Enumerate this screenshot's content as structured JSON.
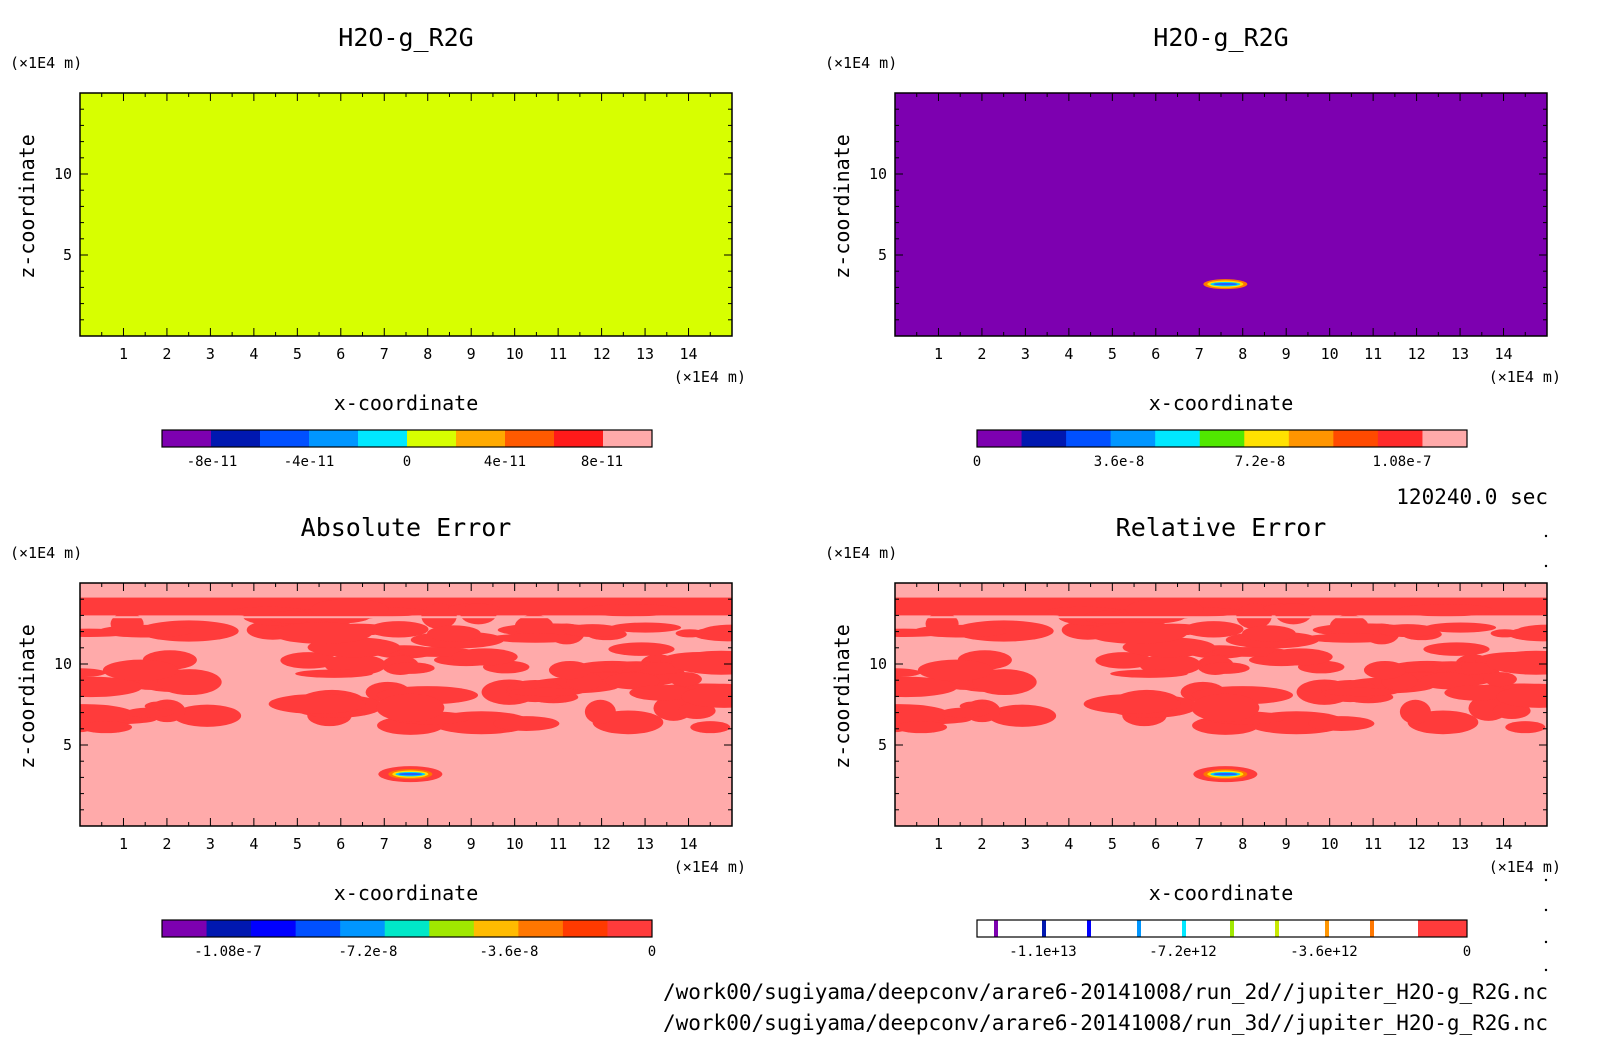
{
  "colors": {
    "panel1_fill": "#d7ff00",
    "panel2_fill": "#7d00b0",
    "error_background": "#ffaaaa",
    "error_blobs": "#ff3b3b",
    "anomaly_ring_outer": "#ff7700",
    "anomaly_ring_mid": "#ffe100",
    "anomaly_ring_inner": "#2060ff"
  },
  "time_label": "120240.0 sec",
  "files": [
    "/work00/sugiyama/deepconv/arare6-20141008/run_2d//jupiter_H2O-g_R2G.nc",
    "/work00/sugiyama/deepconv/arare6-20141008/run_3d//jupiter_H2O-g_R2G.nc"
  ],
  "chart_data": [
    {
      "type": "heatmap",
      "title": "H2O-g_R2G",
      "xlabel": "x-coordinate",
      "ylabel": "z-coordinate",
      "x_unit": "(×1E4 m)",
      "y_unit": "(×1E4 m)",
      "x_ticks": [
        "1",
        "2",
        "3",
        "4",
        "5",
        "6",
        "7",
        "8",
        "9",
        "10",
        "11",
        "12",
        "13",
        "14"
      ],
      "y_ticks": [
        "5",
        "10"
      ],
      "xlim": [
        0,
        15
      ],
      "ylim": [
        0,
        15
      ],
      "field": "uniform, value ≈ 0 everywhere",
      "colorbar": {
        "colors": [
          "#7d00b0",
          "#0018b0",
          "#0050ff",
          "#0096ff",
          "#00e8ff",
          "#d7ff00",
          "#ffaa00",
          "#ff5a00",
          "#ff1a1a",
          "#ffaaaa"
        ],
        "tick_labels": [
          "-8e-11",
          "-4e-11",
          "0",
          "4e-11",
          "8e-11"
        ]
      }
    },
    {
      "type": "heatmap",
      "title": "H2O-g_R2G",
      "xlabel": "x-coordinate",
      "ylabel": "z-coordinate",
      "x_unit": "(×1E4 m)",
      "y_unit": "(×1E4 m)",
      "x_ticks": [
        "1",
        "2",
        "3",
        "4",
        "5",
        "6",
        "7",
        "8",
        "9",
        "10",
        "11",
        "12",
        "13",
        "14"
      ],
      "y_ticks": [
        "5",
        "10"
      ],
      "xlim": [
        0,
        15
      ],
      "ylim": [
        0,
        15
      ],
      "field": "≈ 0 everywhere except a small anomaly centred near x = 7.6, z = 3.2",
      "colorbar": {
        "colors": [
          "#7d00b0",
          "#0018b0",
          "#0050ff",
          "#0096ff",
          "#00e8ff",
          "#50e800",
          "#ffe100",
          "#ff9500",
          "#ff4a00",
          "#ff2a2a",
          "#ffaaaa"
        ],
        "tick_labels": [
          "0",
          "3.6e-8",
          "7.2e-8",
          "1.08e-7"
        ]
      }
    },
    {
      "type": "heatmap",
      "title": "Absolute Error",
      "xlabel": "x-coordinate",
      "ylabel": "z-coordinate",
      "x_unit": "(×1E4 m)",
      "y_unit": "(×1E4 m)",
      "x_ticks": [
        "1",
        "2",
        "3",
        "4",
        "5",
        "6",
        "7",
        "8",
        "9",
        "10",
        "11",
        "12",
        "13",
        "14"
      ],
      "y_ticks": [
        "5",
        "10"
      ],
      "xlim": [
        0,
        15
      ],
      "ylim": [
        0,
        15
      ],
      "field": "near 0 with patchy bands between z ≈ 6 and 14 and the same anomaly near x = 7.6, z = 3.2",
      "colorbar": {
        "colors": [
          "#7d00b0",
          "#0018b0",
          "#0000ff",
          "#0050ff",
          "#0096ff",
          "#00e8c8",
          "#a0e800",
          "#ffbb00",
          "#ff7700",
          "#ff3a00",
          "#ff3b3b"
        ],
        "tick_labels": [
          "-1.08e-7",
          "-7.2e-8",
          "-3.6e-8",
          "0"
        ]
      }
    },
    {
      "type": "heatmap",
      "title": "Relative Error",
      "xlabel": "x-coordinate",
      "ylabel": "z-coordinate",
      "x_unit": "(×1E4 m)",
      "y_unit": "(×1E4 m)",
      "x_ticks": [
        "1",
        "2",
        "3",
        "4",
        "5",
        "6",
        "7",
        "8",
        "9",
        "10",
        "11",
        "12",
        "13",
        "14"
      ],
      "y_ticks": [
        "5",
        "10"
      ],
      "xlim": [
        0,
        15
      ],
      "ylim": [
        0,
        15
      ],
      "field": "same pattern as Absolute Error",
      "colorbar": {
        "style": "thin colored tick lines on white with solid red last segment",
        "line_colors": [
          "#7d00b0",
          "#0018b0",
          "#0000ff",
          "#0096ff",
          "#00e8ff",
          "#a0e800",
          "#c8e800",
          "#ff9500",
          "#ff7700"
        ],
        "end_color": "#ff3b3b",
        "tick_labels": [
          "-1.1e+13",
          "-7.2e+12",
          "-3.6e+12",
          "0"
        ]
      }
    }
  ]
}
